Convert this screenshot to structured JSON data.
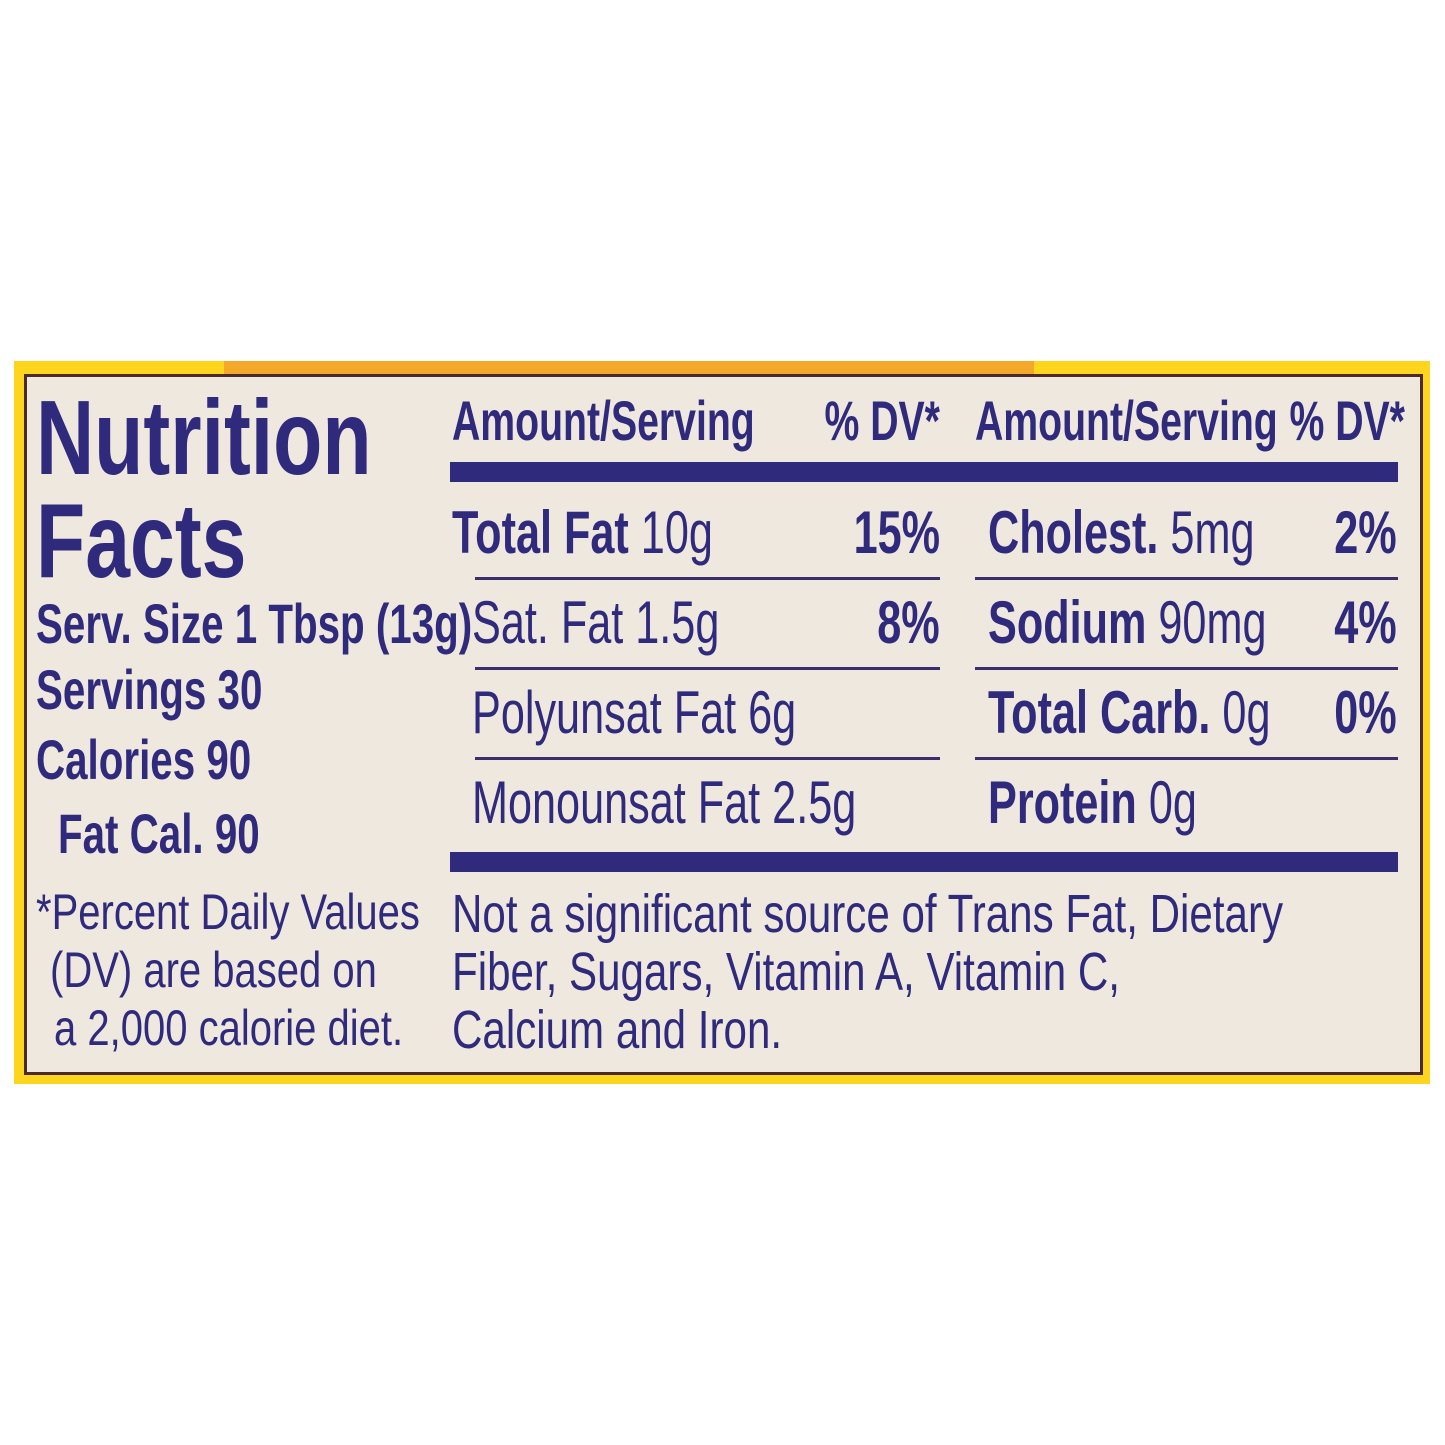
{
  "title": [
    "Nutrition",
    "Facts"
  ],
  "serving_info": {
    "serv_size": "Serv. Size 1 Tbsp (13g)",
    "servings": "Servings 30",
    "calories": "Calories 90",
    "fat_cal": "Fat Cal. 90"
  },
  "footnote": [
    "*Percent Daily Values",
    "(DV) are based on",
    "a 2,000 calorie diet."
  ],
  "headers": {
    "amount": "Amount/Serving",
    "dv": "% DV*"
  },
  "left_nutrients": [
    {
      "name": "Total Fat",
      "amount": "10g",
      "dv": "15%"
    },
    {
      "name": "",
      "amount": "Sat. Fat 1.5g",
      "dv": "8%"
    },
    {
      "name": "",
      "amount": "Polyunsat Fat 6g",
      "dv": ""
    },
    {
      "name": "",
      "amount": "Monounsat Fat 2.5g",
      "dv": ""
    }
  ],
  "right_nutrients": [
    {
      "name": "Cholest.",
      "amount": "5mg",
      "dv": "2%"
    },
    {
      "name": "Sodium",
      "amount": "90mg",
      "dv": "4%"
    },
    {
      "name": "Total Carb.",
      "amount": "0g",
      "dv": "0%"
    },
    {
      "name": "Protein",
      "amount": "0g",
      "dv": ""
    }
  ],
  "disclaimer": [
    "Not a significant source of Trans Fat, Dietary",
    "Fiber, Sugars, Vitamin A, Vitamin C,",
    "Calcium and Iron."
  ],
  "colors": {
    "ink": "#2f2a7c",
    "panel": "#efe8df",
    "border_yellow": "#fcd51c",
    "border_orange": "#f3a82a"
  }
}
